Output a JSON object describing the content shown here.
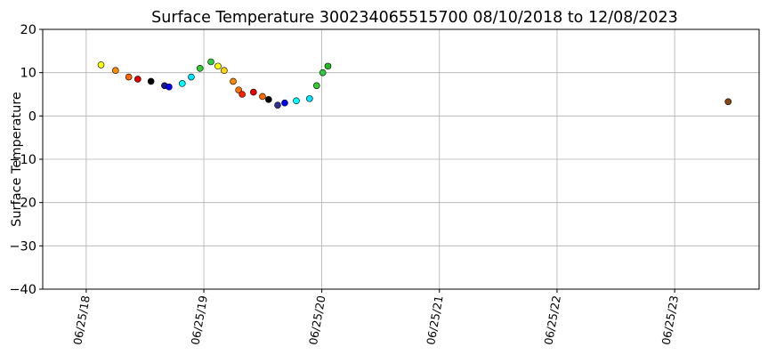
{
  "chart_data": {
    "type": "scatter",
    "title": "Surface Temperature 300234065515700  08/10/2018 to 12/08/2023",
    "ylabel": "Surface Temperature",
    "x": [
      "2018-08-10",
      "2018-09-24",
      "2018-11-04",
      "2018-12-02",
      "2019-01-12",
      "2019-02-23",
      "2019-03-09",
      "2019-04-19",
      "2019-05-17",
      "2019-06-13",
      "2019-07-17",
      "2019-08-08",
      "2019-08-27",
      "2019-09-24",
      "2019-10-11",
      "2019-10-22",
      "2019-11-26",
      "2019-12-24",
      "2020-01-12",
      "2020-02-09",
      "2020-03-02",
      "2020-04-07",
      "2020-05-18",
      "2020-06-09",
      "2020-06-28",
      "2020-07-14",
      "2023-12-08"
    ],
    "values": [
      11.8,
      10.5,
      9,
      8.5,
      8,
      7,
      6.7,
      7.5,
      9,
      11,
      12.5,
      11.5,
      10.5,
      8,
      6,
      5,
      5.5,
      4.5,
      3.8,
      2.5,
      3,
      3.5,
      4,
      7,
      10,
      11.5,
      3.3
    ],
    "colors": [
      "#ffff00",
      "#ff8c00",
      "#ff6a00",
      "#e00000",
      "#000000",
      "#1a1a80",
      "#0000ff",
      "#00ffff",
      "#00e5ff",
      "#33cc33",
      "#2ecc40",
      "#ffff00",
      "#ffd700",
      "#ff8c00",
      "#ff7000",
      "#ff2000",
      "#e00000",
      "#ff6a00",
      "#000000",
      "#303090",
      "#0000ff",
      "#00ffff",
      "#00e5ff",
      "#33cc33",
      "#2ecc40",
      "#22bb22",
      "#8b4513"
    ],
    "xlim": [
      "2018-02-10",
      "2024-03-13"
    ],
    "xticks": [
      {
        "value": "2018-06-25",
        "label": "06/25/18"
      },
      {
        "value": "2019-06-25",
        "label": "06/25/19"
      },
      {
        "value": "2020-06-25",
        "label": "06/25/20"
      },
      {
        "value": "2021-06-25",
        "label": "06/25/21"
      },
      {
        "value": "2022-06-25",
        "label": "06/25/22"
      },
      {
        "value": "2023-06-25",
        "label": "06/25/23"
      }
    ],
    "ylim": [
      -40,
      20
    ],
    "yticks": [
      {
        "value": -40,
        "label": "−40"
      },
      {
        "value": -30,
        "label": "−30"
      },
      {
        "value": -20,
        "label": "−20"
      },
      {
        "value": -10,
        "label": "−10"
      },
      0,
      10,
      20
    ],
    "grid": true
  }
}
